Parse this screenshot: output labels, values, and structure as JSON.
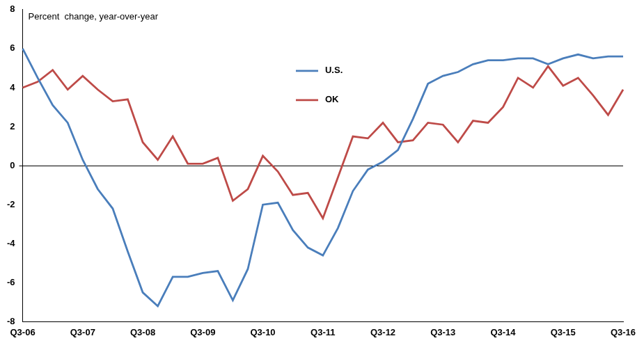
{
  "chart_data": {
    "type": "line",
    "ylabel": "Percent  change, year-over-year",
    "categories": [
      "Q3-06",
      null,
      null,
      null,
      "Q3-07",
      null,
      null,
      null,
      "Q3-08",
      null,
      null,
      null,
      "Q3-09",
      null,
      null,
      null,
      "Q3-10",
      null,
      null,
      null,
      "Q3-11",
      null,
      null,
      null,
      "Q3-12",
      null,
      null,
      null,
      "Q3-13",
      null,
      null,
      null,
      "Q3-14",
      null,
      null,
      null,
      "Q3-15",
      null,
      null,
      null,
      "Q3-16"
    ],
    "series": [
      {
        "name": "U.S.",
        "color": "#4a7ebb",
        "values": [
          6.0,
          4.5,
          3.1,
          2.2,
          0.3,
          -1.2,
          -2.2,
          -4.4,
          -6.5,
          -7.2,
          -5.7,
          -5.7,
          -5.5,
          -5.4,
          -6.9,
          -5.3,
          -2.0,
          -1.9,
          -3.3,
          -4.2,
          -4.6,
          -3.2,
          -1.3,
          -0.2,
          0.2,
          0.8,
          2.4,
          4.2,
          4.6,
          4.8,
          5.2,
          5.4,
          5.4,
          5.5,
          5.5,
          5.2,
          5.5,
          5.7,
          5.5,
          5.6,
          5.6
        ]
      },
      {
        "name": "OK",
        "color": "#be4b48",
        "values": [
          4.0,
          4.3,
          4.9,
          3.9,
          4.6,
          3.9,
          3.3,
          3.4,
          1.2,
          0.3,
          1.5,
          0.1,
          0.1,
          0.4,
          -1.8,
          -1.2,
          0.5,
          -0.3,
          -1.5,
          -1.4,
          -2.7,
          -0.6,
          1.5,
          1.4,
          2.2,
          1.2,
          1.3,
          2.2,
          2.1,
          1.2,
          2.3,
          2.2,
          3.0,
          4.5,
          4.0,
          5.1,
          4.1,
          4.5,
          3.6,
          2.6,
          3.9
        ]
      }
    ],
    "ylim": [
      -8,
      8
    ],
    "yticks": [
      -8,
      -6,
      -4,
      -2,
      0,
      2,
      4,
      6,
      8
    ],
    "grid": false,
    "legend": "top"
  }
}
